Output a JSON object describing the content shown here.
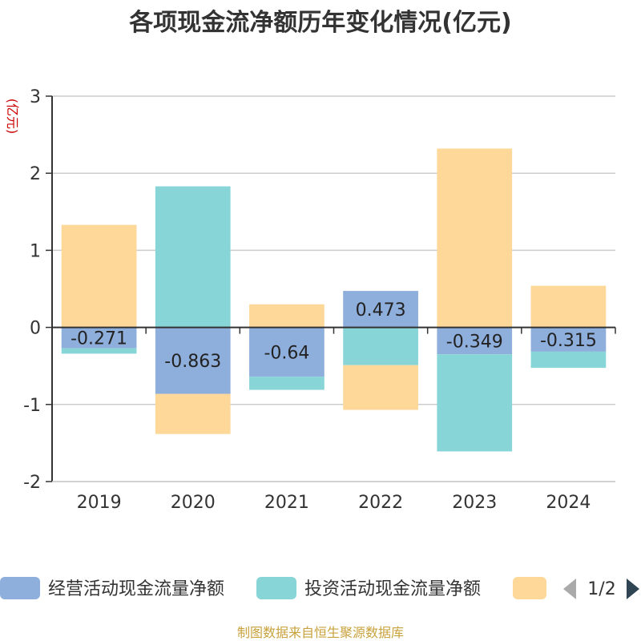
{
  "chart_data": {
    "type": "bar",
    "stacked": true,
    "title": "各项现金流净额历年变化情况(亿元)",
    "ylabel": "(亿元)",
    "categories": [
      "2019",
      "2020",
      "2021",
      "2022",
      "2023",
      "2024"
    ],
    "ylim": [
      -2,
      3
    ],
    "yticks": [
      "3",
      "2",
      "1",
      "0",
      "-1",
      "-2"
    ],
    "grid": true,
    "series": [
      {
        "name": "经营活动现金流量净额",
        "color": "#8eaedb",
        "values": [
          -0.271,
          -0.863,
          -0.64,
          0.473,
          -0.349,
          -0.315
        ]
      },
      {
        "name": "投资活动现金流量净额",
        "color": "#88d5d8",
        "values": [
          -0.07,
          1.83,
          -0.17,
          -0.49,
          -1.26,
          -0.21
        ]
      },
      {
        "name": "",
        "color": "#fdd898",
        "values": [
          1.33,
          -0.52,
          0.3,
          -0.58,
          2.32,
          0.54
        ]
      }
    ],
    "data_labels": [
      "-0.271",
      "-0.863",
      "-0.64",
      "0.473",
      "-0.349",
      "-0.315"
    ],
    "legend_position": "bottom"
  },
  "legend_pager": "1/2",
  "source_text": "制图数据来自恒生聚源数据库"
}
